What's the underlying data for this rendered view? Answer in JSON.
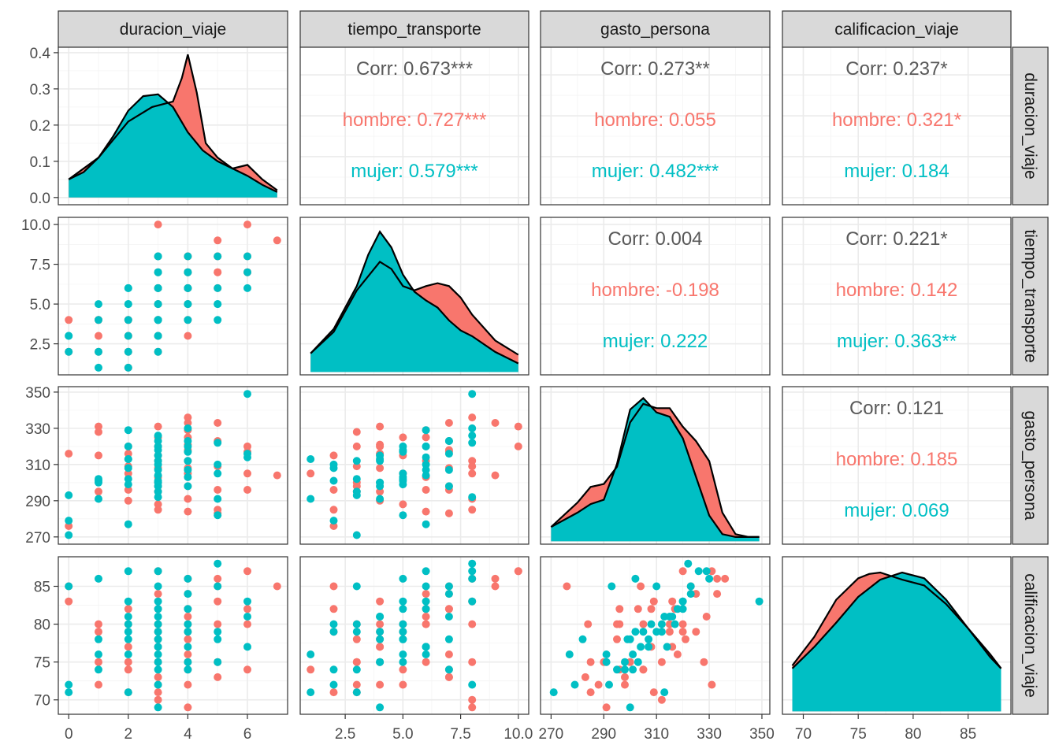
{
  "colors": {
    "hombre": "#F8766D",
    "mujer": "#00BFC4",
    "overall": "#595959",
    "strip": "#d9d9d9"
  },
  "variables": [
    "duracion_viaje",
    "tiempo_transporte",
    "gasto_persona",
    "calificacion_viaje"
  ],
  "strips": {
    "top": [
      "duracion_viaje",
      "tiempo_transporte",
      "gasto_persona",
      "calificacion_viaje"
    ],
    "right": [
      "duracion_viaje",
      "tiempo_transporte",
      "gasto_persona",
      "calificacion_viaje"
    ]
  },
  "chart_data": {
    "type": "scatter",
    "plot_type": "pairs plot (scatterplot matrix)",
    "groups": [
      "hombre",
      "mujer"
    ],
    "axes": {
      "duracion_viaje": {
        "range": [
          -0.35,
          7.35
        ],
        "ticks": [
          0,
          2,
          4,
          6
        ],
        "tick_labels": [
          "0",
          "2",
          "4",
          "6"
        ]
      },
      "tiempo_transporte": {
        "range": [
          0.55,
          10.45
        ],
        "ticks": [
          2.5,
          5.0,
          7.5,
          10.0
        ],
        "tick_labels": [
          "2.5",
          "5.0",
          "7.5",
          "10.0"
        ]
      },
      "gasto_persona": {
        "range": [
          266,
          353
        ],
        "ticks": [
          270,
          290,
          310,
          330,
          350
        ],
        "tick_labels": [
          "270",
          "290",
          "310",
          "330",
          "350"
        ]
      },
      "calificacion_viaje": {
        "range": [
          68.1,
          88.9
        ],
        "ticks": [
          70,
          75,
          80,
          85
        ],
        "tick_labels": [
          "70",
          "75",
          "80",
          "85"
        ]
      }
    },
    "density_axis": {
      "range": [
        -0.02,
        0.415
      ],
      "ticks": [
        0.0,
        0.1,
        0.2,
        0.3,
        0.4
      ],
      "tick_labels": [
        "0.0",
        "0.1",
        "0.2",
        "0.3",
        "0.4"
      ]
    },
    "densities": {
      "duracion_viaje": {
        "hombre": [
          [
            0,
            0.05
          ],
          [
            1,
            0.11
          ],
          [
            2,
            0.21
          ],
          [
            2.8,
            0.25
          ],
          [
            3.5,
            0.265
          ],
          [
            3.8,
            0.33
          ],
          [
            4,
            0.395
          ],
          [
            4.3,
            0.29
          ],
          [
            4.6,
            0.15
          ],
          [
            5,
            0.11
          ],
          [
            5.5,
            0.08
          ],
          [
            6,
            0.09
          ],
          [
            6.5,
            0.05
          ],
          [
            7,
            0.02
          ]
        ],
        "mujer": [
          [
            0,
            0.05
          ],
          [
            0.5,
            0.07
          ],
          [
            1,
            0.11
          ],
          [
            1.5,
            0.17
          ],
          [
            2,
            0.24
          ],
          [
            2.5,
            0.28
          ],
          [
            3,
            0.285
          ],
          [
            3.5,
            0.25
          ],
          [
            4,
            0.18
          ],
          [
            4.5,
            0.13
          ],
          [
            5,
            0.1
          ],
          [
            5.5,
            0.08
          ],
          [
            6,
            0.06
          ],
          [
            6.5,
            0.035
          ],
          [
            7,
            0.015
          ]
        ]
      },
      "tiempo_transporte": {
        "hombre": [
          [
            1,
            0.13
          ],
          [
            2,
            0.28
          ],
          [
            3,
            0.57
          ],
          [
            4,
            0.77
          ],
          [
            4.5,
            0.72
          ],
          [
            5,
            0.6
          ],
          [
            5.5,
            0.57
          ],
          [
            6,
            0.6
          ],
          [
            6.5,
            0.62
          ],
          [
            7,
            0.6
          ],
          [
            7.5,
            0.52
          ],
          [
            8,
            0.4
          ],
          [
            9,
            0.22
          ],
          [
            10,
            0.12
          ]
        ],
        "mujer": [
          [
            1,
            0.13
          ],
          [
            2,
            0.3
          ],
          [
            3,
            0.6
          ],
          [
            3.5,
            0.82
          ],
          [
            4,
            0.98
          ],
          [
            4.5,
            0.87
          ],
          [
            5,
            0.68
          ],
          [
            5.5,
            0.56
          ],
          [
            6,
            0.5
          ],
          [
            6.5,
            0.45
          ],
          [
            7,
            0.36
          ],
          [
            7.5,
            0.29
          ],
          [
            8,
            0.25
          ],
          [
            9,
            0.14
          ],
          [
            10,
            0.06
          ]
        ]
      },
      "gasto_persona": {
        "hombre": [
          [
            270,
            0.1
          ],
          [
            280,
            0.27
          ],
          [
            285,
            0.38
          ],
          [
            290,
            0.4
          ],
          [
            295,
            0.52
          ],
          [
            300,
            0.83
          ],
          [
            305,
            0.96
          ],
          [
            310,
            0.93
          ],
          [
            315,
            0.93
          ],
          [
            320,
            0.8
          ],
          [
            325,
            0.7
          ],
          [
            330,
            0.56
          ],
          [
            335,
            0.2
          ],
          [
            340,
            0.05
          ],
          [
            345,
            0.03
          ],
          [
            349,
            0.03
          ]
        ],
        "mujer": [
          [
            270,
            0.1
          ],
          [
            280,
            0.2
          ],
          [
            285,
            0.26
          ],
          [
            290,
            0.29
          ],
          [
            295,
            0.54
          ],
          [
            300,
            0.92
          ],
          [
            305,
            1.0
          ],
          [
            310,
            0.9
          ],
          [
            315,
            0.87
          ],
          [
            320,
            0.72
          ],
          [
            325,
            0.45
          ],
          [
            330,
            0.18
          ],
          [
            335,
            0.05
          ],
          [
            340,
            0.03
          ],
          [
            345,
            0.03
          ],
          [
            349,
            0.03
          ]
        ]
      },
      "calificacion_viaje": {
        "hombre": [
          [
            69,
            0.32
          ],
          [
            71,
            0.52
          ],
          [
            73,
            0.78
          ],
          [
            75,
            0.93
          ],
          [
            76,
            0.96
          ],
          [
            77,
            0.97
          ],
          [
            79,
            0.92
          ],
          [
            81,
            0.88
          ],
          [
            83,
            0.75
          ],
          [
            85,
            0.58
          ],
          [
            87,
            0.4
          ],
          [
            88,
            0.3
          ]
        ],
        "mujer": [
          [
            69,
            0.3
          ],
          [
            71,
            0.45
          ],
          [
            73,
            0.62
          ],
          [
            75,
            0.8
          ],
          [
            77,
            0.92
          ],
          [
            79,
            0.97
          ],
          [
            81,
            0.93
          ],
          [
            83,
            0.78
          ],
          [
            85,
            0.58
          ],
          [
            87,
            0.38
          ],
          [
            88,
            0.3
          ]
        ]
      }
    },
    "correlations": [
      {
        "row": "duracion_viaje",
        "col": "tiempo_transporte",
        "overall": "Corr: 0.673***",
        "hombre": "hombre: 0.727***",
        "mujer": "mujer: 0.579***"
      },
      {
        "row": "duracion_viaje",
        "col": "gasto_persona",
        "overall": "Corr: 0.273**",
        "hombre": "hombre: 0.055",
        "mujer": "mujer: 0.482***"
      },
      {
        "row": "duracion_viaje",
        "col": "calificacion_viaje",
        "overall": "Corr: 0.237*",
        "hombre": "hombre: 0.321*",
        "mujer": "mujer: 0.184"
      },
      {
        "row": "tiempo_transporte",
        "col": "gasto_persona",
        "overall": "Corr: 0.004",
        "hombre": "hombre: -0.198",
        "mujer": "mujer: 0.222"
      },
      {
        "row": "tiempo_transporte",
        "col": "calificacion_viaje",
        "overall": "Corr: 0.221*",
        "hombre": "hombre: 0.142",
        "mujer": "mujer: 0.363**"
      },
      {
        "row": "gasto_persona",
        "col": "calificacion_viaje",
        "overall": "Corr: 0.121",
        "hombre": "hombre: 0.185",
        "mujer": "mujer: 0.069"
      }
    ],
    "observations": [
      {
        "g": "hombre",
        "d": 0,
        "t": 4,
        "p": 316,
        "c": 83
      },
      {
        "g": "hombre",
        "d": 0,
        "t": 2,
        "p": 276,
        "c": 85
      },
      {
        "g": "hombre",
        "d": 1,
        "t": 4,
        "p": 331,
        "c": 72
      },
      {
        "g": "hombre",
        "d": 1,
        "t": 3,
        "p": 328,
        "c": 75
      },
      {
        "g": "hombre",
        "d": 1,
        "t": 2,
        "p": 315,
        "c": 79
      },
      {
        "g": "hombre",
        "d": 1,
        "t": 4,
        "p": 295,
        "c": 80
      },
      {
        "g": "hombre",
        "d": 2,
        "t": 3,
        "p": 320,
        "c": 80
      },
      {
        "g": "hombre",
        "d": 2,
        "t": 4,
        "p": 316,
        "c": 77
      },
      {
        "g": "hombre",
        "d": 2,
        "t": 1,
        "p": 305,
        "c": 74
      },
      {
        "g": "hombre",
        "d": 2,
        "t": 2,
        "p": 296,
        "c": 82
      },
      {
        "g": "hombre",
        "d": 2,
        "t": 4,
        "p": 290,
        "c": 75
      },
      {
        "g": "hombre",
        "d": 2,
        "t": 3,
        "p": 309,
        "c": 71
      },
      {
        "g": "hombre",
        "d": 3,
        "t": 10,
        "p": 331,
        "c": 87
      },
      {
        "g": "hombre",
        "d": 3,
        "t": 6,
        "p": 325,
        "c": 84
      },
      {
        "g": "hombre",
        "d": 3,
        "t": 5,
        "p": 315,
        "c": 80
      },
      {
        "g": "hombre",
        "d": 3,
        "t": 4,
        "p": 308,
        "c": 77
      },
      {
        "g": "hombre",
        "d": 3,
        "t": 3,
        "p": 300,
        "c": 75
      },
      {
        "g": "hombre",
        "d": 3,
        "t": 7,
        "p": 298,
        "c": 73
      },
      {
        "g": "hombre",
        "d": 3,
        "t": 5,
        "p": 288,
        "c": 72
      },
      {
        "g": "hombre",
        "d": 3,
        "t": 2,
        "p": 285,
        "c": 71
      },
      {
        "g": "hombre",
        "d": 3,
        "t": 6,
        "p": 303,
        "c": 82
      },
      {
        "g": "hombre",
        "d": 3,
        "t": 4,
        "p": 320,
        "c": 79
      },
      {
        "g": "hombre",
        "d": 3,
        "t": 8,
        "p": 312,
        "c": 70
      },
      {
        "g": "hombre",
        "d": 3,
        "t": 3,
        "p": 295,
        "c": 78
      },
      {
        "g": "hombre",
        "d": 4,
        "t": 8,
        "p": 336,
        "c": 86
      },
      {
        "g": "hombre",
        "d": 4,
        "t": 7,
        "p": 333,
        "c": 84
      },
      {
        "g": "hombre",
        "d": 4,
        "t": 6,
        "p": 329,
        "c": 81
      },
      {
        "g": "hombre",
        "d": 4,
        "t": 5,
        "p": 325,
        "c": 79
      },
      {
        "g": "hombre",
        "d": 4,
        "t": 4,
        "p": 321,
        "c": 78
      },
      {
        "g": "hombre",
        "d": 4,
        "t": 7,
        "p": 318,
        "c": 76
      },
      {
        "g": "hombre",
        "d": 4,
        "t": 6,
        "p": 312,
        "c": 75
      },
      {
        "g": "hombre",
        "d": 4,
        "t": 5,
        "p": 305,
        "c": 74
      },
      {
        "g": "hombre",
        "d": 4,
        "t": 3,
        "p": 298,
        "c": 72
      },
      {
        "g": "hombre",
        "d": 4,
        "t": 8,
        "p": 291,
        "c": 69
      },
      {
        "g": "hombre",
        "d": 4,
        "t": 6,
        "p": 284,
        "c": 80
      },
      {
        "g": "hombre",
        "d": 4,
        "t": 7,
        "p": 308,
        "c": 82
      },
      {
        "g": "hombre",
        "d": 5,
        "t": 9,
        "p": 333,
        "c": 86
      },
      {
        "g": "hombre",
        "d": 5,
        "t": 7,
        "p": 323,
        "c": 85
      },
      {
        "g": "hombre",
        "d": 5,
        "t": 8,
        "p": 309,
        "c": 83
      },
      {
        "g": "hombre",
        "d": 5,
        "t": 6,
        "p": 296,
        "c": 80
      },
      {
        "g": "hombre",
        "d": 5,
        "t": 8,
        "p": 285,
        "c": 75
      },
      {
        "g": "hombre",
        "d": 5,
        "t": 7,
        "p": 283,
        "c": 73
      },
      {
        "g": "hombre",
        "d": 6,
        "t": 10,
        "p": 320,
        "c": 87
      },
      {
        "g": "hombre",
        "d": 6,
        "t": 8,
        "p": 305,
        "c": 80
      },
      {
        "g": "hombre",
        "d": 6,
        "t": 7,
        "p": 296,
        "c": 74
      },
      {
        "g": "hombre",
        "d": 6,
        "t": 7,
        "p": 317,
        "c": 82
      },
      {
        "g": "hombre",
        "d": 7,
        "t": 9,
        "p": 304,
        "c": 85
      },
      {
        "g": "mujer",
        "d": 0,
        "t": 3,
        "p": 293,
        "c": 85
      },
      {
        "g": "mujer",
        "d": 0,
        "t": 2,
        "p": 279,
        "c": 72
      },
      {
        "g": "mujer",
        "d": 0,
        "t": 3,
        "p": 271,
        "c": 71
      },
      {
        "g": "mujer",
        "d": 1,
        "t": 5,
        "p": 302,
        "c": 86
      },
      {
        "g": "mujer",
        "d": 1,
        "t": 4,
        "p": 300,
        "c": 78
      },
      {
        "g": "mujer",
        "d": 1,
        "t": 1,
        "p": 291,
        "c": 76
      },
      {
        "g": "mujer",
        "d": 1,
        "t": 2,
        "p": 301,
        "c": 74
      },
      {
        "g": "mujer",
        "d": 2,
        "t": 6,
        "p": 329,
        "c": 87
      },
      {
        "g": "mujer",
        "d": 2,
        "t": 5,
        "p": 320,
        "c": 83
      },
      {
        "g": "mujer",
        "d": 2,
        "t": 4,
        "p": 313,
        "c": 81
      },
      {
        "g": "mujer",
        "d": 2,
        "t": 2,
        "p": 308,
        "c": 80
      },
      {
        "g": "mujer",
        "d": 2,
        "t": 3,
        "p": 302,
        "c": 79
      },
      {
        "g": "mujer",
        "d": 2,
        "t": 5,
        "p": 299,
        "c": 78
      },
      {
        "g": "mujer",
        "d": 2,
        "t": 6,
        "p": 277,
        "c": 76
      },
      {
        "g": "mujer",
        "d": 2,
        "t": 1,
        "p": 313,
        "c": 71
      },
      {
        "g": "mujer",
        "d": 3,
        "t": 8,
        "p": 326,
        "c": 87
      },
      {
        "g": "mujer",
        "d": 3,
        "t": 7,
        "p": 323,
        "c": 85
      },
      {
        "g": "mujer",
        "d": 3,
        "t": 6,
        "p": 320,
        "c": 83
      },
      {
        "g": "mujer",
        "d": 3,
        "t": 5,
        "p": 318,
        "c": 82
      },
      {
        "g": "mujer",
        "d": 3,
        "t": 4,
        "p": 315,
        "c": 81
      },
      {
        "g": "mujer",
        "d": 3,
        "t": 3,
        "p": 312,
        "c": 80
      },
      {
        "g": "mujer",
        "d": 3,
        "t": 2,
        "p": 310,
        "c": 79
      },
      {
        "g": "mujer",
        "d": 3,
        "t": 7,
        "p": 307,
        "c": 78
      },
      {
        "g": "mujer",
        "d": 3,
        "t": 6,
        "p": 304,
        "c": 77
      },
      {
        "g": "mujer",
        "d": 3,
        "t": 5,
        "p": 301,
        "c": 76
      },
      {
        "g": "mujer",
        "d": 3,
        "t": 4,
        "p": 298,
        "c": 75
      },
      {
        "g": "mujer",
        "d": 3,
        "t": 3,
        "p": 295,
        "c": 74
      },
      {
        "g": "mujer",
        "d": 3,
        "t": 8,
        "p": 292,
        "c": 72
      },
      {
        "g": "mujer",
        "d": 3,
        "t": 4,
        "p": 300,
        "c": 69
      },
      {
        "g": "mujer",
        "d": 4,
        "t": 8,
        "p": 330,
        "c": 86
      },
      {
        "g": "mujer",
        "d": 4,
        "t": 7,
        "p": 323,
        "c": 84
      },
      {
        "g": "mujer",
        "d": 4,
        "t": 6,
        "p": 320,
        "c": 82
      },
      {
        "g": "mujer",
        "d": 4,
        "t": 5,
        "p": 317,
        "c": 80
      },
      {
        "g": "mujer",
        "d": 4,
        "t": 4,
        "p": 312,
        "c": 79
      },
      {
        "g": "mujer",
        "d": 4,
        "t": 6,
        "p": 307,
        "c": 77
      },
      {
        "g": "mujer",
        "d": 4,
        "t": 5,
        "p": 303,
        "c": 75
      },
      {
        "g": "mujer",
        "d": 4,
        "t": 7,
        "p": 298,
        "c": 74
      },
      {
        "g": "mujer",
        "d": 5,
        "t": 8,
        "p": 322,
        "c": 88
      },
      {
        "g": "mujer",
        "d": 5,
        "t": 6,
        "p": 310,
        "c": 85
      },
      {
        "g": "mujer",
        "d": 5,
        "t": 5,
        "p": 305,
        "c": 79
      },
      {
        "g": "mujer",
        "d": 5,
        "t": 4,
        "p": 291,
        "c": 75
      },
      {
        "g": "mujer",
        "d": 5,
        "t": 5,
        "p": 282,
        "c": 78
      },
      {
        "g": "mujer",
        "d": 6,
        "t": 8,
        "p": 349,
        "c": 83
      },
      {
        "g": "mujer",
        "d": 6,
        "t": 7,
        "p": 316,
        "c": 81
      },
      {
        "g": "mujer",
        "d": 6,
        "t": 6,
        "p": 314,
        "c": 77
      }
    ]
  }
}
